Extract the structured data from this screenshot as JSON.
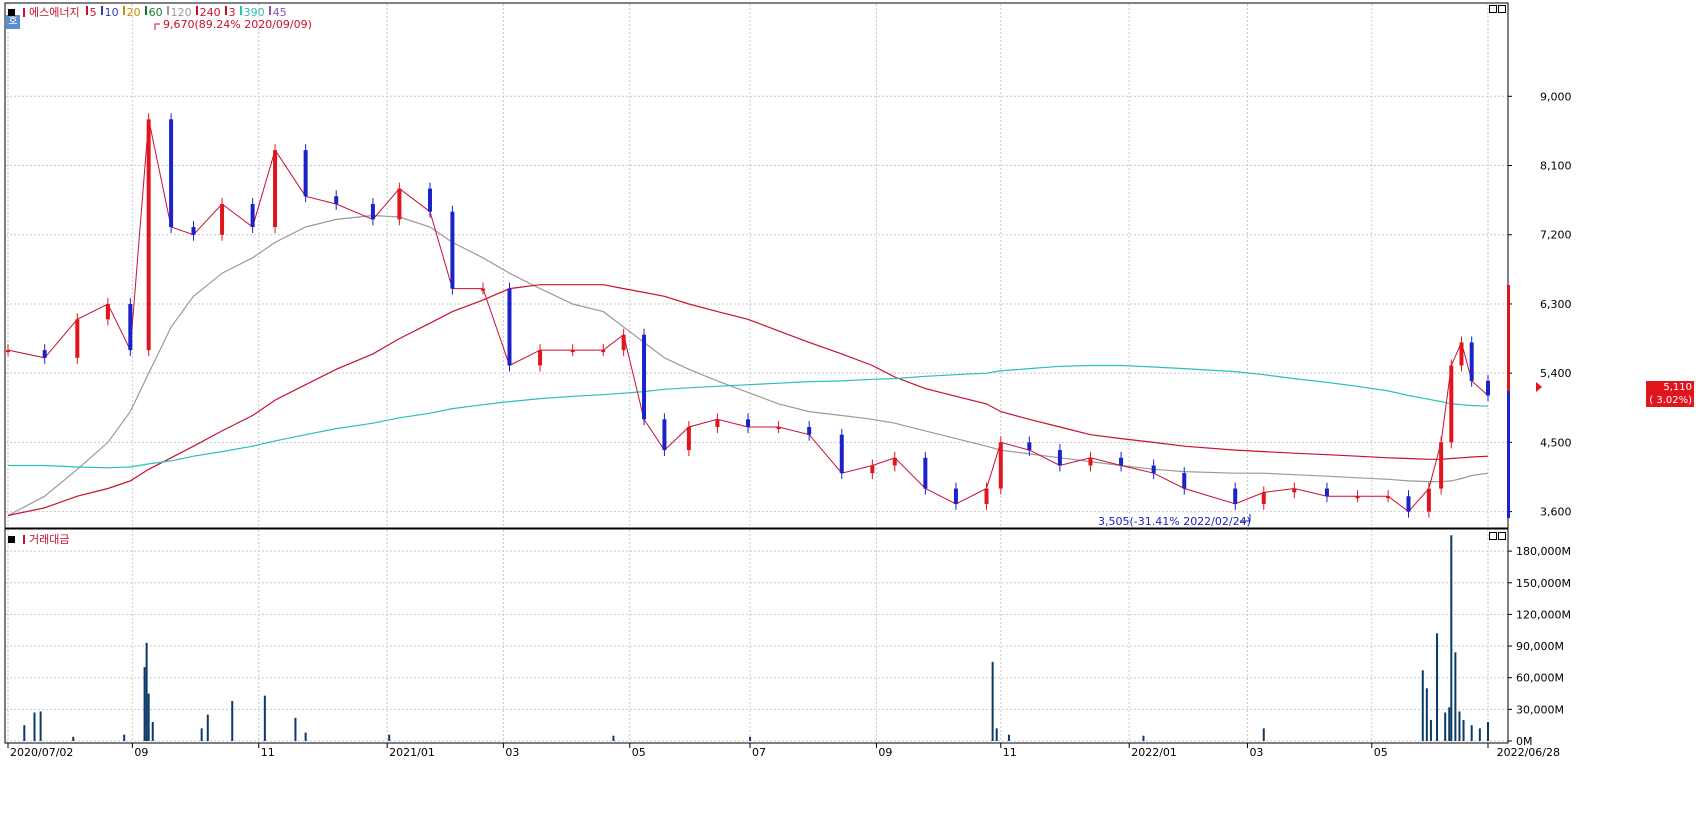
{
  "legend": {
    "stock_name": "에스에너지",
    "ma_items": [
      {
        "label": "5",
        "color": "#c8102e"
      },
      {
        "label": "10",
        "color": "#1f3fbf"
      },
      {
        "label": "20",
        "color": "#d08a00"
      },
      {
        "label": "60",
        "color": "#1a7a2a"
      },
      {
        "label": "120",
        "color": "#9a9a9a"
      },
      {
        "label": "240",
        "color": "#c8102e"
      },
      {
        "label": "3",
        "color": "#c8102e"
      },
      {
        "label": "390",
        "color": "#2bbfb7"
      },
      {
        "label": "45",
        "color": "#8a4fbf"
      }
    ]
  },
  "volume_legend": "거래대금",
  "side_badge": "호",
  "annotations": {
    "high": "9,670(89.24% 2020/09/09)",
    "low": "3,505(-31.41% 2022/02/24)"
  },
  "current_price": {
    "value": "5,110",
    "change": "( 3.02%)"
  },
  "colors": {
    "up": "#e0151d",
    "down": "#1a22c8",
    "volume": "#0b3a66",
    "grid": "#c8c8c8"
  },
  "chart_data": [
    {
      "type": "candlestick",
      "title": "에스에너지",
      "y_ticks": [
        "9,000",
        "8,100",
        "7,200",
        "6,300",
        "5,400",
        "4,500",
        "3,600"
      ],
      "ylim": [
        3400,
        10200
      ],
      "x_ticks": [
        "2020/07/02",
        "09",
        "11",
        "2021/01",
        "03",
        "05",
        "07",
        "09",
        "11",
        "2022/01",
        "03",
        "05",
        "2022/06/28"
      ],
      "x_range": [
        "2020-07-02",
        "2022-06-28"
      ],
      "grid": true,
      "close_series": {
        "name": "close",
        "x": [
          "2020-07-02",
          "2020-07-20",
          "2020-08-05",
          "2020-08-20",
          "2020-08-31",
          "2020-09-09",
          "2020-09-20",
          "2020-10-01",
          "2020-10-15",
          "2020-10-30",
          "2020-11-10",
          "2020-11-25",
          "2020-12-10",
          "2020-12-28",
          "2021-01-10",
          "2021-01-25",
          "2021-02-05",
          "2021-02-20",
          "2021-03-05",
          "2021-03-20",
          "2021-04-05",
          "2021-04-20",
          "2021-04-30",
          "2021-05-10",
          "2021-05-20",
          "2021-06-01",
          "2021-06-15",
          "2021-06-30",
          "2021-07-15",
          "2021-07-30",
          "2021-08-15",
          "2021-08-30",
          "2021-09-10",
          "2021-09-25",
          "2021-10-10",
          "2021-10-25",
          "2021-11-01",
          "2021-11-15",
          "2021-11-30",
          "2021-12-15",
          "2021-12-30",
          "2022-01-15",
          "2022-01-30",
          "2022-02-24",
          "2022-03-10",
          "2022-03-25",
          "2022-04-10",
          "2022-04-25",
          "2022-05-10",
          "2022-05-20",
          "2022-05-30",
          "2022-06-05",
          "2022-06-10",
          "2022-06-15",
          "2022-06-20",
          "2022-06-28"
        ],
        "values": [
          5700,
          5600,
          6100,
          6300,
          5700,
          8700,
          7300,
          7200,
          7600,
          7300,
          8300,
          7700,
          7600,
          7400,
          7800,
          7500,
          6500,
          6500,
          5500,
          5700,
          5700,
          5700,
          5900,
          4800,
          4400,
          4700,
          4800,
          4700,
          4700,
          4600,
          4100,
          4200,
          4300,
          3900,
          3700,
          3900,
          4500,
          4400,
          4200,
          4300,
          4200,
          4100,
          3900,
          3700,
          3850,
          3900,
          3800,
          3800,
          3800,
          3600,
          3900,
          4500,
          5500,
          5800,
          5300,
          5110
        ]
      },
      "overlays": [
        {
          "name": "120",
          "color": "#9a9a9a",
          "values": [
            3550,
            3800,
            4150,
            4500,
            4900,
            5400,
            6000,
            6400,
            6700,
            6900,
            7100,
            7300,
            7400,
            7450,
            7430,
            7300,
            7100,
            6900,
            6700,
            6500,
            6300,
            6200,
            6000,
            5800,
            5600,
            5450,
            5300,
            5150,
            5000,
            4900,
            4850,
            4800,
            4750,
            4650,
            4550,
            4450,
            4400,
            4350,
            4300,
            4250,
            4200,
            4150,
            4120,
            4100,
            4100,
            4080,
            4060,
            4040,
            4020,
            4000,
            3990,
            3990,
            4000,
            4030,
            4070,
            4100
          ]
        },
        {
          "name": "240",
          "color": "#c8102e",
          "values": [
            3550,
            3650,
            3800,
            3900,
            4000,
            4150,
            4300,
            4450,
            4650,
            4850,
            5050,
            5250,
            5450,
            5650,
            5850,
            6050,
            6200,
            6350,
            6500,
            6550,
            6550,
            6550,
            6500,
            6450,
            6400,
            6300,
            6200,
            6100,
            5950,
            5800,
            5650,
            5500,
            5350,
            5200,
            5100,
            5000,
            4900,
            4800,
            4700,
            4600,
            4550,
            4500,
            4450,
            4400,
            4380,
            4360,
            4340,
            4320,
            4300,
            4290,
            4280,
            4280,
            4290,
            4300,
            4310,
            4320
          ]
        },
        {
          "name": "390",
          "color": "#2bbfb7",
          "values": [
            4200,
            4200,
            4180,
            4170,
            4180,
            4220,
            4260,
            4320,
            4380,
            4450,
            4520,
            4600,
            4680,
            4750,
            4820,
            4880,
            4940,
            4990,
            5030,
            5070,
            5100,
            5120,
            5140,
            5160,
            5190,
            5210,
            5230,
            5250,
            5270,
            5290,
            5300,
            5320,
            5330,
            5360,
            5380,
            5400,
            5430,
            5460,
            5490,
            5500,
            5500,
            5480,
            5460,
            5420,
            5380,
            5330,
            5280,
            5230,
            5170,
            5110,
            5060,
            5030,
            5000,
            4990,
            4980,
            4970
          ]
        }
      ]
    },
    {
      "type": "bar",
      "title": "거래대금",
      "y_ticks": [
        "180,000M",
        "150,000M",
        "120,000M",
        "90,000M",
        "60,000M",
        "30,000M",
        "0M"
      ],
      "ylim": [
        0,
        200000
      ],
      "unit": "M",
      "x": [
        "2020-07-10",
        "2020-07-15",
        "2020-07-18",
        "2020-08-03",
        "2020-08-28",
        "2020-09-07",
        "2020-09-08",
        "2020-09-09",
        "2020-09-11",
        "2020-10-05",
        "2020-10-08",
        "2020-10-20",
        "2020-11-05",
        "2020-11-20",
        "2020-11-25",
        "2021-01-05",
        "2021-04-25",
        "2021-07-01",
        "2021-10-28",
        "2021-10-30",
        "2021-11-05",
        "2022-01-10",
        "2022-03-10",
        "2022-05-27",
        "2022-05-29",
        "2022-05-31",
        "2022-06-03",
        "2022-06-07",
        "2022-06-09",
        "2022-06-10",
        "2022-06-12",
        "2022-06-14",
        "2022-06-16",
        "2022-06-20",
        "2022-06-24",
        "2022-06-28"
      ],
      "values": [
        15000,
        27000,
        28000,
        4000,
        6000,
        70000,
        93000,
        45000,
        18000,
        12000,
        25000,
        38000,
        43000,
        22000,
        8000,
        6000,
        5000,
        4000,
        75000,
        12000,
        6000,
        5000,
        12000,
        67000,
        50000,
        20000,
        102000,
        27000,
        32000,
        195000,
        84000,
        28000,
        20000,
        15000,
        12000,
        18000
      ]
    }
  ]
}
